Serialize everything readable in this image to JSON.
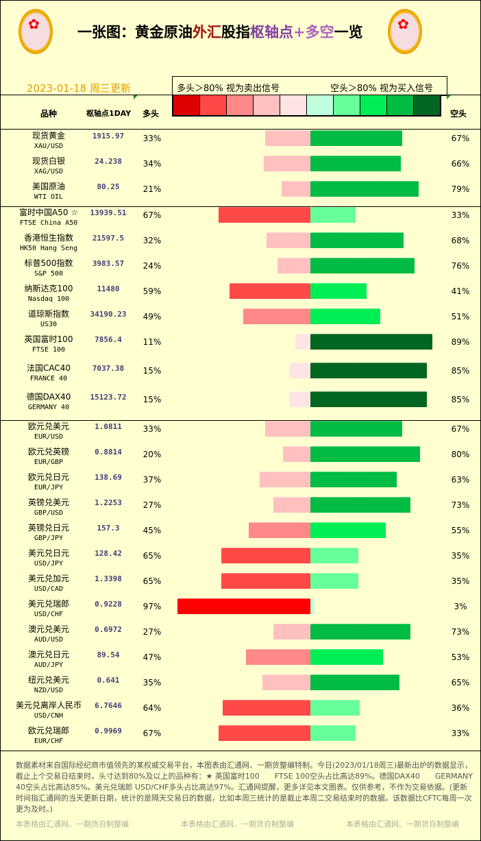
{
  "header": {
    "title_parts": [
      {
        "text": "一张图：黄金原油",
        "color": "#000000"
      },
      {
        "text": "外汇",
        "color": "#a01010"
      },
      {
        "text": "股指",
        "color": "#000000"
      },
      {
        "text": "枢轴点",
        "color": "#8040a0"
      },
      {
        "text": "+多空",
        "color": "#b060c0"
      },
      {
        "text": "一览",
        "color": "#000000"
      }
    ],
    "logo_icon": "plum-blossom-medallion",
    "date": "2023-01-18 周三更新",
    "legend_long": "多头＞80% 视为卖出信号",
    "legend_short": "空头＞80% 视为买入信号",
    "legend_colors": [
      "#dd0000",
      "#ff4848",
      "#ff8888",
      "#ffc0c0",
      "#ffe4e4",
      "#c0ffdd",
      "#66ff99",
      "#00ee55",
      "#00bb44",
      "#006622"
    ],
    "col_name": "品种",
    "col_pivot": "枢轴点1DAY",
    "col_long": "多头",
    "col_short": "空头"
  },
  "groups": [
    {
      "rows": [
        {
          "cn": "现货黄金",
          "en": "XAU/USD",
          "pivot": "1915.97",
          "long": 33,
          "short": 67,
          "long_text": "33%",
          "short_text": "67%"
        },
        {
          "cn": "现货白银",
          "en": "XAG/USD",
          "pivot": "24.238",
          "long": 34,
          "short": 66,
          "long_text": "34%",
          "short_text": "66%"
        },
        {
          "cn": "美国原油",
          "en": "WTI OIL",
          "pivot": "80.25",
          "long": 21,
          "short": 79,
          "long_text": "21%",
          "short_text": "79%"
        }
      ]
    },
    {
      "rows": [
        {
          "cn": "富时中国A50 ☆",
          "en": "FTSE China A50",
          "pivot": "13939.51",
          "long": 67,
          "short": 33,
          "long_text": "67%",
          "short_text": "33%"
        },
        {
          "cn": "香港恒生指数",
          "en": "HK50 Hang Seng",
          "pivot": "21597.5",
          "long": 32,
          "short": 68,
          "long_text": "32%",
          "short_text": "68%"
        },
        {
          "cn": "标普500指数",
          "en": "S&P 500",
          "pivot": "3983.57",
          "long": 24,
          "short": 76,
          "long_text": "24%",
          "short_text": "76%"
        },
        {
          "cn": "纳斯达克100",
          "en": "Nasdaq 100",
          "pivot": "11480",
          "long": 59,
          "short": 41,
          "long_text": "59%",
          "short_text": "41%"
        },
        {
          "cn": "道琼斯指数",
          "en": "US30",
          "pivot": "34190.23",
          "long": 49,
          "short": 51,
          "long_text": "49%",
          "short_text": "51%"
        },
        {
          "cn": "英国富时100",
          "en": "FTSE 100",
          "pivot": "7856.4",
          "long": 11,
          "short": 89,
          "long_text": "11%",
          "short_text": "89%",
          "tall": true
        },
        {
          "cn": "法国CAC40",
          "en": "FRANCE 40",
          "pivot": "7037.38",
          "long": 15,
          "short": 85,
          "long_text": "15%",
          "short_text": "85%",
          "tall": true
        },
        {
          "cn": "德国DAX40",
          "en": "GERMANY 40",
          "pivot": "15123.72",
          "long": 15,
          "short": 85,
          "long_text": "15%",
          "short_text": "85%",
          "tall": true
        }
      ]
    },
    {
      "rows": [
        {
          "cn": "欧元兑美元",
          "en": "EUR/USD",
          "pivot": "1.0811",
          "long": 33,
          "short": 67,
          "long_text": "33%",
          "short_text": "67%"
        },
        {
          "cn": "欧元兑英镑",
          "en": "EUR/GBP",
          "pivot": "0.8814",
          "long": 20,
          "short": 80,
          "long_text": "20%",
          "short_text": "80%"
        },
        {
          "cn": "欧元兑日元",
          "en": "EUR/JPY",
          "pivot": "138.69",
          "long": 37,
          "short": 63,
          "long_text": "37%",
          "short_text": "63%"
        },
        {
          "cn": "英镑兑美元",
          "en": "GBP/USD",
          "pivot": "1.2253",
          "long": 27,
          "short": 73,
          "long_text": "27%",
          "short_text": "73%"
        },
        {
          "cn": "英镑兑日元",
          "en": "GBP/JPY",
          "pivot": "157.3",
          "long": 45,
          "short": 55,
          "long_text": "45%",
          "short_text": "55%"
        },
        {
          "cn": "美元兑日元",
          "en": "USD/JPY",
          "pivot": "128.42",
          "long": 65,
          "short": 35,
          "long_text": "65%",
          "short_text": "35%"
        },
        {
          "cn": "美元兑加元",
          "en": "USD/CAD",
          "pivot": "1.3398",
          "long": 65,
          "short": 35,
          "long_text": "65%",
          "short_text": "35%"
        },
        {
          "cn": "美元兑瑞郎",
          "en": "USD/CHF",
          "pivot": "0.9228",
          "long": 97,
          "short": 3,
          "long_text": "97%",
          "short_text": "3%"
        },
        {
          "cn": "澳元兑美元",
          "en": "AUD/USD",
          "pivot": "0.6972",
          "long": 27,
          "short": 73,
          "long_text": "27%",
          "short_text": "73%"
        },
        {
          "cn": "澳元兑日元",
          "en": "AUD/JPY",
          "pivot": "89.54",
          "long": 47,
          "short": 53,
          "long_text": "47%",
          "short_text": "53%"
        },
        {
          "cn": "纽元兑美元",
          "en": "NZD/USD",
          "pivot": "0.641",
          "long": 35,
          "short": 65,
          "long_text": "35%",
          "short_text": "65%"
        },
        {
          "cn": "美元兑离岸人民币",
          "en": "USD/CNH",
          "pivot": "6.7646",
          "long": 64,
          "short": 36,
          "long_text": "64%",
          "short_text": "36%"
        },
        {
          "cn": "欧元兑瑞郎",
          "en": "EUR/CHF",
          "pivot": "0.9969",
          "long": 67,
          "short": 33,
          "long_text": "67%",
          "short_text": "33%"
        }
      ]
    }
  ],
  "footer": {
    "text": "数据素材来自国际经纪商市值领先的某权威交易平台，本图表由汇通网、一期货整编特制。今日(2023/01/18周三)最新出炉的数据显示，截止上个交易日结束时，头寸达到80%及以上的品种有：★ 英国富时100　　FTSE 100空头占比高达89%。德国DAX40　　GERMANY 40空头占比高达85%。美元兑瑞郎 USD/CHF多头占比高达97%。汇通网提醒，更多详见本文图表。仅供参考，不作为交易依据。(更新时间指汇通网的当天更新日期，统计的是隔天交易日的数据，比如本周三统计的是截止本周二交易结束时的数据。该数据比CFTC每周一次更为及时。)",
    "watermark": "本表格由汇通网、一期货自制整编"
  }
}
